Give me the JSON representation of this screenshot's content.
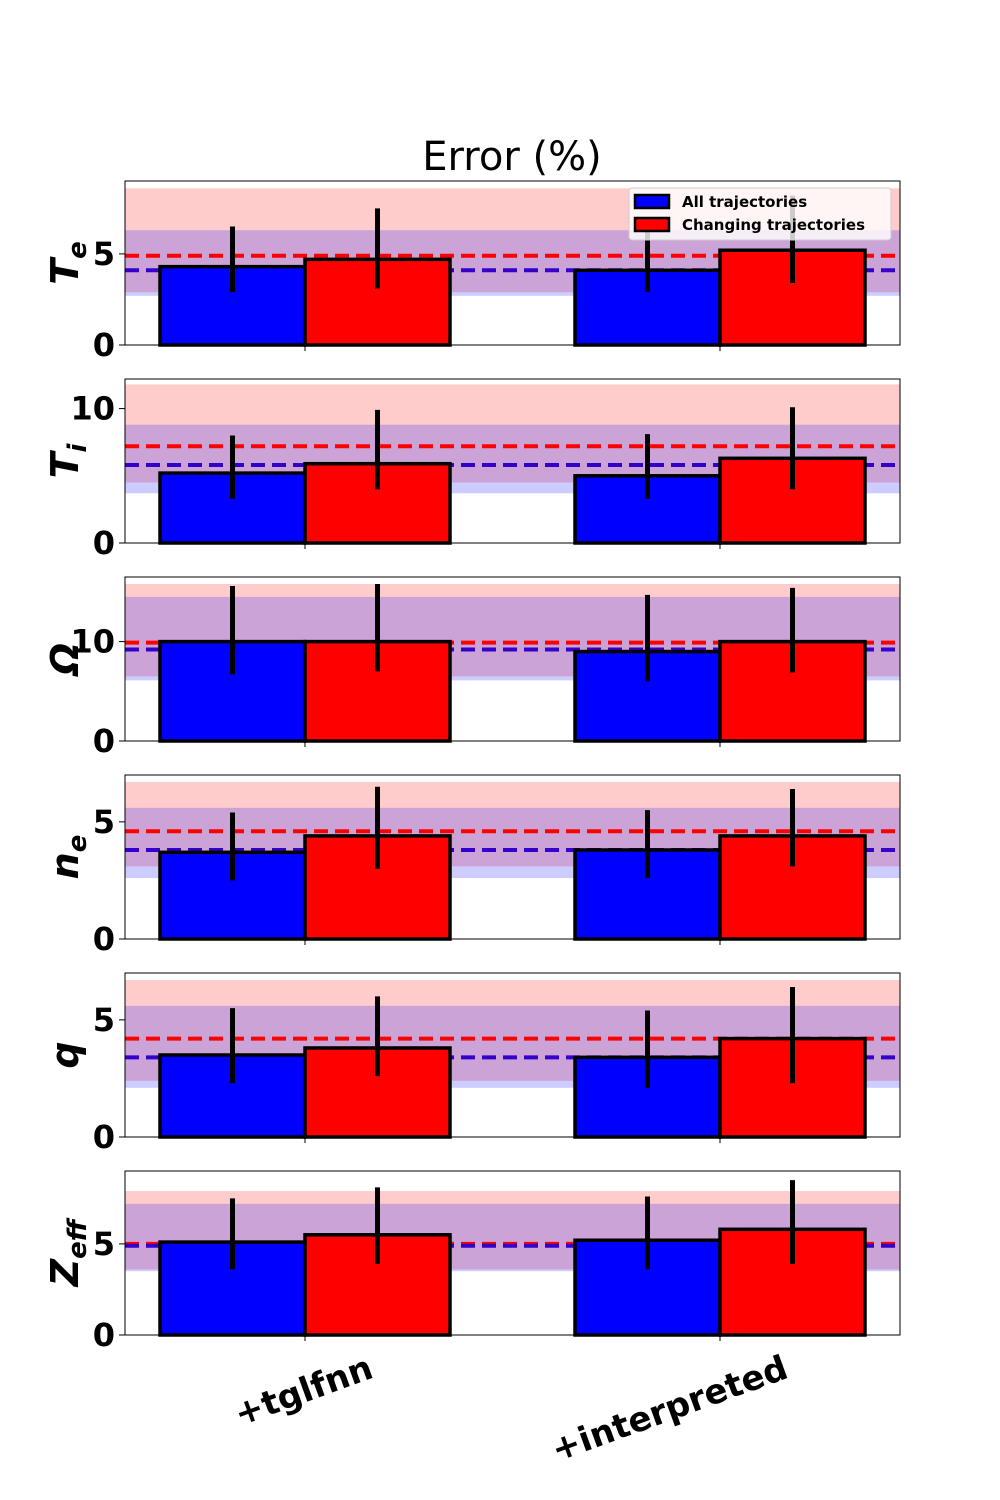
{
  "chart_data": {
    "type": "bar",
    "title": "Error (%)",
    "categories": [
      "+tglfnn",
      "+interpreted"
    ],
    "legend": {
      "position": "top-right",
      "entries": [
        "All trajectories",
        "Changing trajectories"
      ]
    },
    "colors": {
      "all": "#0000ff",
      "changing": "#ff0000",
      "all_ref_line": "#3300cc",
      "changing_ref_line": "#ff0000",
      "all_band": "#0000ff",
      "changing_band": "#ff0000"
    },
    "panels": [
      {
        "ylabel_main": "T",
        "ylabel_sub": "e",
        "ylim": [
          0,
          9
        ],
        "yticks": [
          0,
          5
        ],
        "series": [
          {
            "name": "All trajectories",
            "values": [
              4.3,
              4.1
            ],
            "err_low": [
              2.9,
              2.9
            ],
            "err_high": [
              6.5,
              6.4
            ]
          },
          {
            "name": "Changing trajectories",
            "values": [
              4.7,
              5.2
            ],
            "err_low": [
              3.1,
              3.4
            ],
            "err_high": [
              7.5,
              8.2
            ]
          }
        ],
        "ref_all": 4.1,
        "band_all": [
          2.7,
          6.3
        ],
        "ref_changing": 4.9,
        "band_changing": [
          2.9,
          8.6
        ]
      },
      {
        "ylabel_main": "T",
        "ylabel_sub": "i",
        "ylim": [
          0,
          12.2
        ],
        "yticks": [
          0,
          10
        ],
        "series": [
          {
            "name": "All trajectories",
            "values": [
              5.2,
              5.0
            ],
            "err_low": [
              3.3,
              3.3
            ],
            "err_high": [
              8.0,
              8.1
            ]
          },
          {
            "name": "Changing trajectories",
            "values": [
              5.9,
              6.3
            ],
            "err_low": [
              4.0,
              4.0
            ],
            "err_high": [
              9.9,
              10.1
            ]
          }
        ],
        "ref_all": 5.8,
        "band_all": [
          3.7,
          8.8
        ],
        "ref_changing": 7.2,
        "band_changing": [
          4.5,
          11.8
        ]
      },
      {
        "ylabel_main": "Ω",
        "ylabel_sub": "",
        "ylim": [
          0,
          16.5
        ],
        "yticks": [
          0,
          10
        ],
        "series": [
          {
            "name": "All trajectories",
            "values": [
              10.0,
              9.0
            ],
            "err_low": [
              6.7,
              6.0
            ],
            "err_high": [
              15.6,
              14.7
            ]
          },
          {
            "name": "Changing trajectories",
            "values": [
              10.0,
              10.0
            ],
            "err_low": [
              7.0,
              6.9
            ],
            "err_high": [
              15.8,
              15.4
            ]
          }
        ],
        "ref_all": 9.2,
        "band_all": [
          6.1,
          14.5
        ],
        "ref_changing": 9.9,
        "band_changing": [
          6.5,
          15.8
        ]
      },
      {
        "ylabel_main": "n",
        "ylabel_sub": "e",
        "ylim": [
          0,
          7
        ],
        "yticks": [
          0,
          5
        ],
        "series": [
          {
            "name": "All trajectories",
            "values": [
              3.7,
              3.8
            ],
            "err_low": [
              2.5,
              2.6
            ],
            "err_high": [
              5.4,
              5.5
            ]
          },
          {
            "name": "Changing trajectories",
            "values": [
              4.4,
              4.4
            ],
            "err_low": [
              3.0,
              3.1
            ],
            "err_high": [
              6.5,
              6.4
            ]
          }
        ],
        "ref_all": 3.8,
        "band_all": [
          2.6,
          5.6
        ],
        "ref_changing": 4.6,
        "band_changing": [
          3.1,
          6.7
        ]
      },
      {
        "ylabel_main": "q",
        "ylabel_sub": "",
        "ylim": [
          0,
          7
        ],
        "yticks": [
          0,
          5
        ],
        "series": [
          {
            "name": "All trajectories",
            "values": [
              3.5,
              3.4
            ],
            "err_low": [
              2.3,
              2.1
            ],
            "err_high": [
              5.5,
              5.4
            ]
          },
          {
            "name": "Changing trajectories",
            "values": [
              3.8,
              4.2
            ],
            "err_low": [
              2.6,
              2.3
            ],
            "err_high": [
              6.0,
              6.4
            ]
          }
        ],
        "ref_all": 3.4,
        "band_all": [
          2.1,
          5.6
        ],
        "ref_changing": 4.2,
        "band_changing": [
          2.4,
          6.7
        ]
      },
      {
        "ylabel_main": "Z",
        "ylabel_sub": "eff",
        "ylim": [
          0,
          9
        ],
        "yticks": [
          0,
          5
        ],
        "series": [
          {
            "name": "All trajectories",
            "values": [
              5.1,
              5.2
            ],
            "err_low": [
              3.6,
              3.6
            ],
            "err_high": [
              7.5,
              7.6
            ]
          },
          {
            "name": "Changing trajectories",
            "values": [
              5.5,
              5.8
            ],
            "err_low": [
              3.9,
              3.9
            ],
            "err_high": [
              8.1,
              8.5
            ]
          }
        ],
        "ref_all": 4.9,
        "band_all": [
          3.5,
          7.2
        ],
        "ref_changing": 5.0,
        "band_changing": [
          3.6,
          7.9
        ]
      }
    ]
  }
}
